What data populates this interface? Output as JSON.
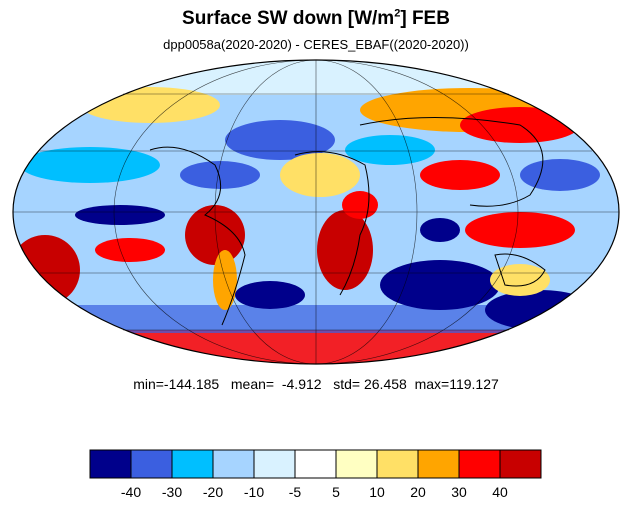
{
  "title": {
    "main": "Surface SW down [W/m",
    "superscript": "2",
    "suffix": "]  FEB"
  },
  "subtitle": "dpp0058a(2020-2020) - CERES_EBAF((2020-2020))",
  "stats": {
    "min_label": "min=",
    "min": "-144.185",
    "mean_label": "mean=",
    "mean": "-4.912",
    "std_label": "std=",
    "std": "26.458",
    "max_label": "max=",
    "max": "119.127"
  },
  "colorbar": {
    "colors": [
      "#00008b",
      "#3b5fe0",
      "#00bfff",
      "#a6d4ff",
      "#d9f2ff",
      "#ffffff",
      "#ffffc2",
      "#ffe066",
      "#ffa500",
      "#ff0000",
      "#c80000"
    ],
    "tick_labels": [
      "-40",
      "-30",
      "-20",
      "-10",
      "-5",
      "5",
      "10",
      "20",
      "30",
      "40"
    ]
  },
  "map": {
    "projection": "Mollweide",
    "graticule": true,
    "coastlines": true
  }
}
